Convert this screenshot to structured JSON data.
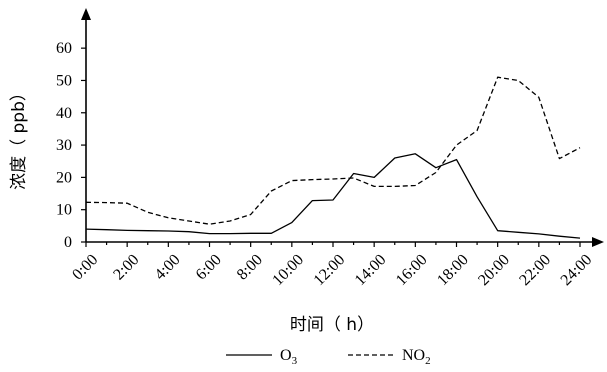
{
  "chart_data": {
    "type": "line",
    "title": "",
    "xlabel": "时间（ h）",
    "ylabel": "浓度（ ppb）",
    "x": [
      "0:00",
      "1:00",
      "2:00",
      "3:00",
      "4:00",
      "5:00",
      "6:00",
      "7:00",
      "8:00",
      "9:00",
      "10:00",
      "11:00",
      "12:00",
      "13:00",
      "14:00",
      "15:00",
      "16:00",
      "17:00",
      "18:00",
      "19:00",
      "20:00",
      "21:00",
      "22:00",
      "23:00",
      "24:00"
    ],
    "x_tick_labels": [
      "0:00",
      "2:00",
      "4:00",
      "6:00",
      "8:00",
      "10:00",
      "12:00",
      "14:00",
      "16:00",
      "18:00",
      "20:00",
      "22:00",
      "24:00"
    ],
    "y_ticks": [
      0,
      10,
      20,
      30,
      40,
      50,
      60
    ],
    "ylim": [
      0,
      65
    ],
    "grid": false,
    "legend_position": "bottom-center",
    "series": [
      {
        "name": "O3",
        "name_base": "O",
        "name_sub": "3",
        "style": "solid",
        "color": "#000000",
        "values": [
          4,
          3.8,
          3.6,
          3.5,
          3.4,
          3.2,
          2.6,
          2.6,
          2.7,
          2.7,
          6,
          12.8,
          13,
          21.2,
          20,
          26,
          27.3,
          23,
          25.5,
          14,
          3.5,
          3,
          2.5,
          1.8,
          1.2
        ]
      },
      {
        "name": "NO2",
        "name_base": "NO",
        "name_sub": "2",
        "style": "dashed",
        "color": "#000000",
        "values": [
          12.3,
          12.2,
          12,
          9.2,
          7.5,
          6.5,
          5.5,
          6.5,
          8.5,
          15.8,
          19,
          19.3,
          19.5,
          19.8,
          17.2,
          17.2,
          17.5,
          21.5,
          30,
          34.5,
          51,
          50,
          44.8,
          25.8,
          29.2
        ]
      }
    ]
  }
}
